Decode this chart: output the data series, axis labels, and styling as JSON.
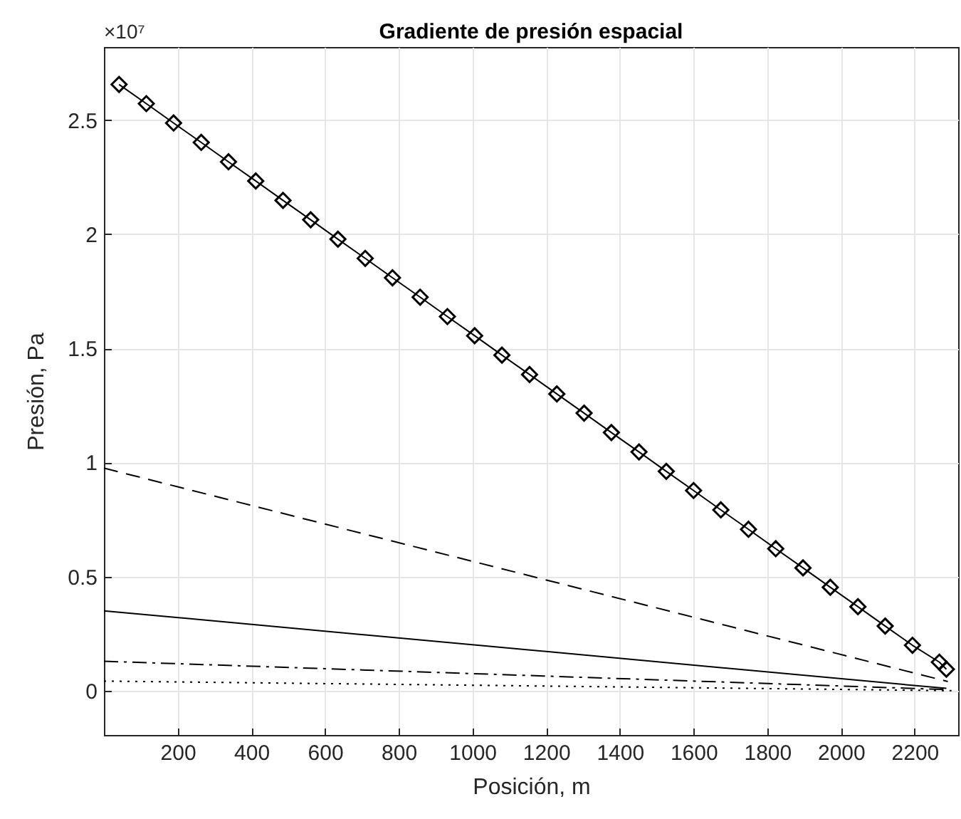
{
  "chart_data": {
    "type": "line",
    "title": "Gradiente de presión espacial",
    "xlabel": "Posición, m",
    "ylabel": "Presión, Pa",
    "annotations": [
      "×10⁷"
    ],
    "xlim": [
      0,
      2318
    ],
    "ylim": [
      -0.194,
      2.82
    ],
    "xticks": [
      200,
      400,
      600,
      800,
      1000,
      1200,
      1400,
      1600,
      1800,
      2000,
      2200
    ],
    "yticks": [
      0,
      0.5,
      1,
      1.5,
      2,
      2.5
    ],
    "grid": true,
    "series": [
      {
        "color": "#000000",
        "marker": "diamond",
        "line_style": "solid",
        "x": [
          41,
          115,
          189,
          264,
          338,
          412,
          486,
          561,
          635,
          709,
          783,
          858,
          932,
          1006,
          1080,
          1155,
          1229,
          1303,
          1377,
          1452,
          1526,
          1600,
          1674,
          1749,
          1823,
          1897,
          1971,
          2046,
          2120,
          2194,
          2267,
          2286
        ],
        "values": [
          2.656,
          2.572,
          2.487,
          2.402,
          2.317,
          2.233,
          2.148,
          2.063,
          1.978,
          1.894,
          1.809,
          1.724,
          1.639,
          1.555,
          1.47,
          1.385,
          1.3,
          1.216,
          1.131,
          1.046,
          0.961,
          0.877,
          0.792,
          0.707,
          0.622,
          0.538,
          0.453,
          0.368,
          0.283,
          0.199,
          0.125,
          0.094
        ]
      },
      {
        "color": "#000000",
        "marker": "none",
        "line_style": "dashed",
        "x": [
          0,
          2290
        ],
        "values": [
          0.975,
          0.04
        ]
      },
      {
        "color": "#000000",
        "marker": "none",
        "line_style": "solid",
        "x": [
          0,
          2286
        ],
        "values": [
          0.35,
          0.01
        ]
      },
      {
        "color": "#000000",
        "marker": "none",
        "line_style": "dashdot",
        "x": [
          0,
          2286
        ],
        "values": [
          0.129,
          0.005
        ]
      },
      {
        "color": "#000000",
        "marker": "none",
        "line_style": "dotted",
        "x": [
          0,
          2300
        ],
        "values": [
          0.042,
          0
        ]
      }
    ]
  }
}
